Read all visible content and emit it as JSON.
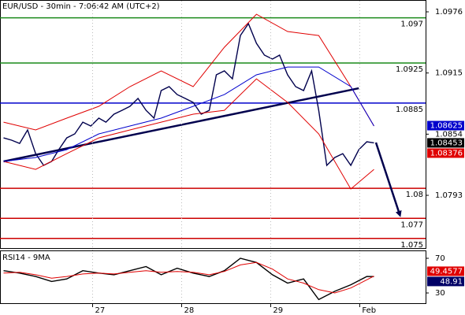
{
  "chart_data": [
    {
      "type": "line",
      "title": "EUR/USD - 30min - 7:06:42 AM (UTC+2)",
      "xlim": [
        25.96,
        30.74
      ],
      "ylim": [
        1.07404,
        1.09878
      ],
      "yticks": [
        1.0976,
        1.0915,
        1.0854,
        1.0793
      ],
      "series": [
        {
          "color": "#00004d",
          "x": [
            26.0,
            26.09,
            26.18,
            26.27,
            26.36,
            26.45,
            26.54,
            26.62,
            26.71,
            26.8,
            26.89,
            26.98,
            27.07,
            27.15,
            27.24,
            27.33,
            27.42,
            27.51,
            27.6,
            27.69,
            27.77,
            27.86,
            27.95,
            28.04,
            28.13,
            28.22,
            28.31,
            28.39,
            28.48,
            28.57,
            28.66,
            28.75,
            28.84,
            28.93,
            29.02,
            29.1,
            29.19,
            29.28,
            29.37,
            29.46,
            29.54,
            29.63,
            29.72,
            29.81,
            29.9,
            29.99,
            30.08,
            30.16
          ],
          "values": [
            1.08503,
            1.0848,
            1.08448,
            1.08582,
            1.08346,
            1.08229,
            1.08268,
            1.08386,
            1.08503,
            1.08543,
            1.0866,
            1.08621,
            1.087,
            1.0866,
            1.08739,
            1.08778,
            1.08818,
            1.08896,
            1.08778,
            1.087,
            1.08975,
            1.09014,
            1.08935,
            1.08896,
            1.08857,
            1.08739,
            1.08778,
            1.09132,
            1.09171,
            1.09092,
            1.09524,
            1.09642,
            1.09446,
            1.09328,
            1.09289,
            1.09328,
            1.09132,
            1.09014,
            1.08975,
            1.09171,
            1.08778,
            1.08229,
            1.08307,
            1.08346,
            1.08229,
            1.08386,
            1.08464,
            1.08453
          ]
        },
        {
          "color": "#e00000",
          "x": [
            26.0,
            26.36,
            26.71,
            27.07,
            27.42,
            27.77,
            28.13,
            28.48,
            28.84,
            29.19,
            29.54,
            29.9,
            30.16
          ],
          "values": [
            1.0866,
            1.08582,
            1.087,
            1.08818,
            1.09014,
            1.09171,
            1.09014,
            1.09407,
            1.09736,
            1.09564,
            1.09524,
            1.09014,
            1.08621
          ]
        },
        {
          "color": "#e00000",
          "x": [
            26.0,
            26.36,
            26.71,
            27.07,
            27.42,
            27.77,
            28.13,
            28.48,
            28.84,
            29.19,
            29.54,
            29.9,
            30.16
          ],
          "values": [
            1.08268,
            1.08189,
            1.08346,
            1.08503,
            1.08582,
            1.0866,
            1.08739,
            1.08778,
            1.09092,
            1.08857,
            1.08543,
            1.07993,
            1.08189
          ]
        },
        {
          "color": "#0000cc",
          "x": [
            26.0,
            26.36,
            26.71,
            27.07,
            27.42,
            27.77,
            28.13,
            28.48,
            28.84,
            29.19,
            29.54,
            29.9,
            30.16
          ],
          "values": [
            1.08268,
            1.08307,
            1.08386,
            1.08543,
            1.08621,
            1.087,
            1.08818,
            1.08935,
            1.09132,
            1.0921,
            1.0921,
            1.09014,
            1.08621
          ]
        }
      ],
      "trendline": {
        "x": [
          26.0,
          29.99
        ],
        "values": [
          1.08268,
          1.08998
        ],
        "color": "#00004d"
      },
      "levels": [
        {
          "value": 1.097,
          "color": "#1a8a1a"
        },
        {
          "value": 1.0925,
          "color": "#1a8a1a"
        },
        {
          "value": 1.0885,
          "color": "#0000cc"
        },
        {
          "value": 1.08,
          "color": "#cc0000"
        },
        {
          "value": 1.077,
          "color": "#cc0000"
        },
        {
          "value": 1.075,
          "color": "#cc0000"
        }
      ],
      "price_tags": [
        {
          "value": 1.08625,
          "color": "#0000cc"
        },
        {
          "value": 1.08453,
          "color": "#000000"
        },
        {
          "value": 1.08376,
          "color": "#e00000"
        }
      ]
    },
    {
      "type": "line",
      "title": "RSI14 - 9MA",
      "xlim": [
        25.96,
        30.74
      ],
      "xticks": [
        27,
        28,
        29,
        {
          "value": 30,
          "label": "Feb"
        }
      ],
      "ylim": [
        18.2,
        79.1
      ],
      "yticks": [
        70,
        30
      ],
      "series": [
        {
          "color": "#000000",
          "x": [
            26.0,
            26.18,
            26.36,
            26.54,
            26.71,
            26.89,
            27.07,
            27.24,
            27.42,
            27.6,
            27.77,
            27.95,
            28.13,
            28.31,
            28.48,
            28.66,
            28.84,
            29.02,
            29.19,
            29.37,
            29.54,
            29.72,
            29.9,
            30.08,
            30.16
          ],
          "values": [
            55.7,
            52.9,
            49.0,
            43.3,
            46.2,
            55.7,
            52.9,
            51.0,
            55.7,
            60.5,
            51.0,
            58.6,
            52.9,
            49.0,
            55.7,
            70.0,
            65.2,
            51.0,
            41.4,
            46.2,
            22.4,
            31.9,
            39.5,
            49.0,
            48.9
          ]
        },
        {
          "color": "#e00000",
          "x": [
            26.0,
            26.18,
            26.36,
            26.54,
            26.71,
            26.89,
            27.07,
            27.24,
            27.42,
            27.6,
            27.77,
            27.95,
            28.13,
            28.31,
            28.48,
            28.66,
            28.84,
            29.02,
            29.19,
            29.37,
            29.54,
            29.72,
            29.9,
            30.08,
            30.16
          ],
          "values": [
            52.9,
            53.8,
            51.0,
            47.1,
            49.0,
            51.9,
            52.9,
            51.9,
            53.8,
            55.7,
            53.8,
            54.8,
            53.8,
            51.0,
            54.8,
            62.4,
            65.2,
            57.6,
            46.2,
            41.4,
            33.8,
            30.0,
            35.7,
            45.2,
            49.46
          ]
        }
      ],
      "value_tags": [
        {
          "value": 49.4577,
          "color": "#e00000"
        },
        {
          "value": 48.91,
          "color": "#000066"
        }
      ]
    }
  ]
}
